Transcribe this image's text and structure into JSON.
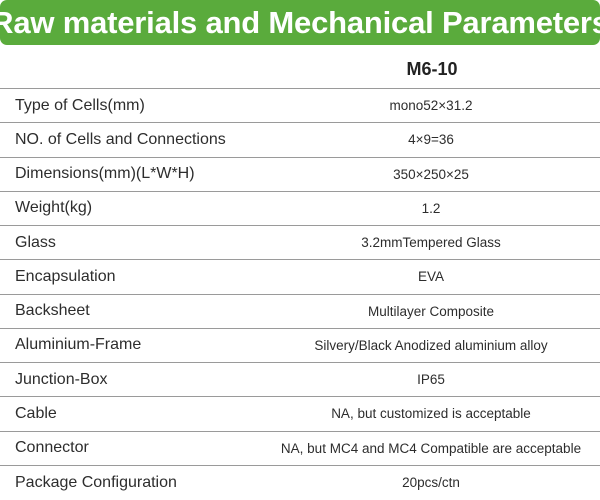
{
  "banner": {
    "title": "Raw materials and Mechanical Parameters",
    "background_color": "#5aab3c",
    "text_color": "#ffffff"
  },
  "table": {
    "column_header_label": "",
    "model": "M6-10",
    "rows": [
      {
        "label": "Type of Cells(mm)",
        "value": "mono52×31.2"
      },
      {
        "label": "NO. of Cells and Connections",
        "value": "4×9=36"
      },
      {
        "label": "Dimensions(mm)(L*W*H)",
        "value": "350×250×25"
      },
      {
        "label": "Weight(kg)",
        "value": "1.2"
      },
      {
        "label": "Glass",
        "value": "3.2mmTempered Glass"
      },
      {
        "label": "Encapsulation",
        "value": "EVA"
      },
      {
        "label": "Backsheet",
        "value": "Multilayer Composite"
      },
      {
        "label": "Aluminium-Frame",
        "value": "Silvery/Black Anodized aluminium alloy"
      },
      {
        "label": "Junction-Box",
        "value": "IP65"
      },
      {
        "label": "Cable",
        "value": "NA, but customized is acceptable"
      },
      {
        "label": "Connector",
        "value": "NA, but MC4 and MC4 Compatible are acceptable"
      },
      {
        "label": "Package Configuration",
        "value": "20pcs/ctn"
      }
    ]
  }
}
